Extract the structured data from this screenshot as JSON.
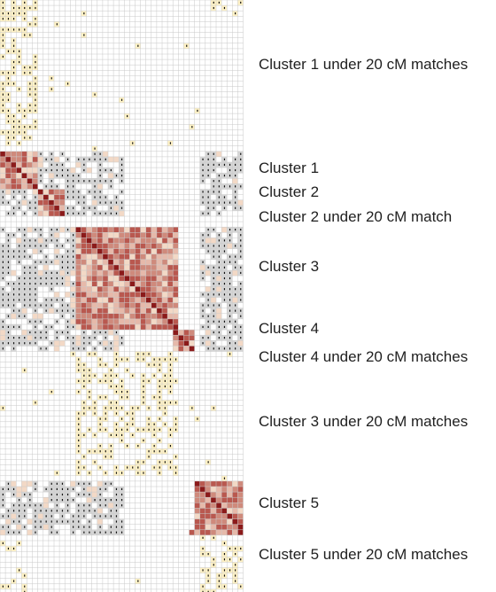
{
  "labels": [
    {
      "key": "c1u",
      "text": "Cluster 1 under 20 cM matches"
    },
    {
      "key": "c1",
      "text": "Cluster 1"
    },
    {
      "key": "c2",
      "text": "Cluster 2"
    },
    {
      "key": "c2u",
      "text": "Cluster 2 under 20 cM match"
    },
    {
      "key": "c3",
      "text": "Cluster 3"
    },
    {
      "key": "c4",
      "text": "Cluster 4"
    },
    {
      "key": "c4u",
      "text": "Cluster 4 under 20 cM matches"
    },
    {
      "key": "c3u",
      "text": "Cluster 3 under 20 cM matches"
    },
    {
      "key": "c5",
      "text": "Cluster 5"
    },
    {
      "key": "c5u",
      "text": "Cluster 5 under 20 cM matches"
    }
  ],
  "matrix": {
    "rows": 111,
    "cols": 45,
    "colors": {
      "gridline": "#c8c8c8",
      "background": "#ffffff",
      "diagonal": "#8b1a1a",
      "strong": "#b9584f",
      "medium": "#cf8a7c",
      "light": "#e6b9aa",
      "pale": "#f3d9c6",
      "grey": "#d6d6d6",
      "yellow": "#fff2c6",
      "mark": "#111111"
    },
    "clusters": [
      {
        "name": "Cluster 1",
        "start": 28,
        "end": 34
      },
      {
        "name": "Cluster 2",
        "start": 35,
        "end": 39
      },
      {
        "name": "Cluster 3",
        "start": 42,
        "end": 60
      },
      {
        "name": "Cluster 4",
        "start": 61,
        "end": 64
      },
      {
        "name": "Cluster 5",
        "start": 89,
        "end": 98
      }
    ]
  }
}
